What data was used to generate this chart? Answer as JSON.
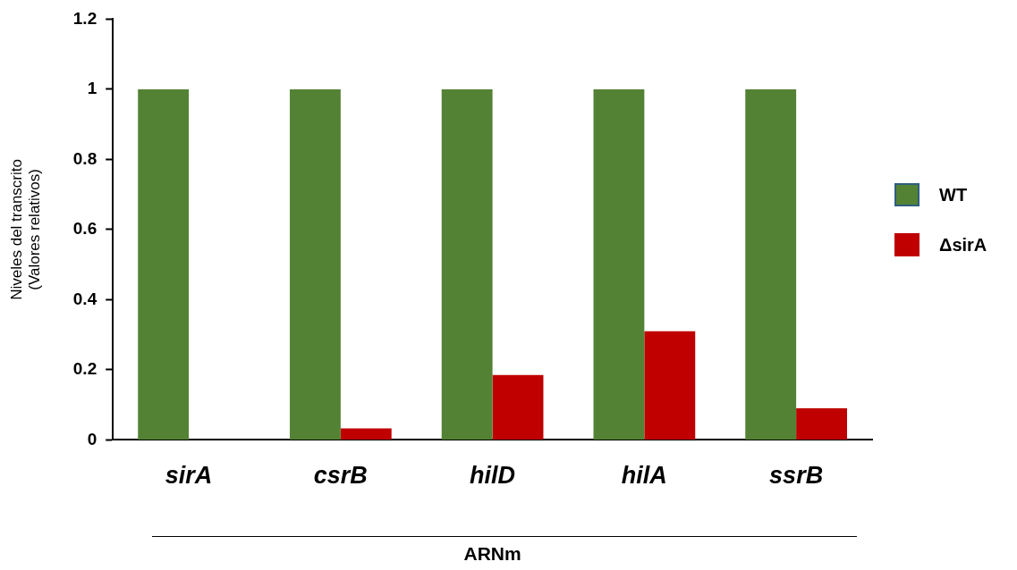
{
  "chart_data": {
    "type": "bar",
    "xlabel": "ARNm",
    "ylabel": "Niveles del transcrito\n(Valores relativos)",
    "categories": [
      "sirA",
      "csrB",
      "hilD",
      "hilA",
      "ssrB"
    ],
    "series": [
      {
        "name": "WT",
        "color": "#548235",
        "values": [
          1,
          1,
          1,
          1,
          1
        ]
      },
      {
        "name": "ΔsirA",
        "color": "#c00000",
        "values": [
          0,
          0.033,
          0.185,
          0.31,
          0.09
        ]
      }
    ],
    "ylim": [
      0,
      1.2
    ],
    "yticks": [
      0,
      0.2,
      0.4,
      0.6,
      0.8,
      1,
      1.2
    ],
    "grid": false,
    "legend": "right"
  }
}
